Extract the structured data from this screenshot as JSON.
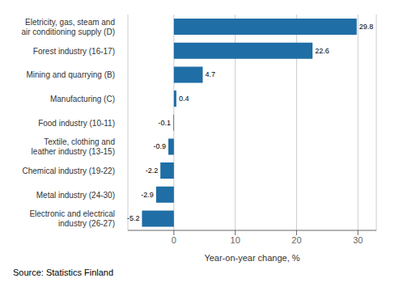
{
  "chart_data": {
    "type": "bar",
    "orientation": "horizontal",
    "categories": [
      "Electronic and electrical\nindustry (26-27)",
      "Metal industry (24-30)",
      "Chemical industry (19-22)",
      "Textile, clothing and\nleather industry (13-15)",
      "Food industry (10-11)",
      "Manufacturing (C)",
      "Mining and quarrying (B)",
      "Forest industry (16-17)",
      "Eletricity, gas, steam and\nair conditioning supply (D)"
    ],
    "values": [
      -5.2,
      -2.9,
      -2.2,
      -0.9,
      -0.1,
      0.4,
      4.7,
      22.6,
      29.8
    ],
    "color": "#1F6EA6",
    "xlabel": "Year-on-year change, %",
    "annotations": [
      "Source: Statistics Finland"
    ],
    "xlim": [
      -7.5,
      33
    ],
    "xticks": [
      0,
      10,
      20,
      30
    ],
    "grid": true,
    "data_labels": true
  }
}
